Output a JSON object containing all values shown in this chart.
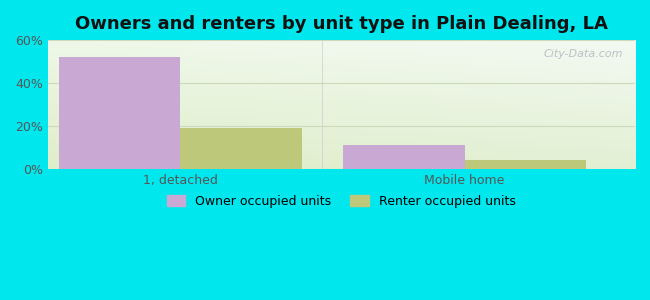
{
  "title": "Owners and renters by unit type in Plain Dealing, LA",
  "categories": [
    "1, detached",
    "Mobile home"
  ],
  "owner_values": [
    52.0,
    11.0
  ],
  "renter_values": [
    19.0,
    4.0
  ],
  "owner_color": "#c9a8d4",
  "renter_color": "#bec87a",
  "owner_label": "Owner occupied units",
  "renter_label": "Renter occupied units",
  "ylim": [
    0,
    60
  ],
  "yticks": [
    0,
    20,
    40,
    60
  ],
  "ytick_labels": [
    "0%",
    "20%",
    "40%",
    "60%"
  ],
  "background_outer": "#00e8ee",
  "grid_color": "#ccd9bb",
  "watermark": "City-Data.com",
  "bar_width": 0.32,
  "title_fontsize": 13,
  "tick_fontsize": 9,
  "legend_fontsize": 9
}
